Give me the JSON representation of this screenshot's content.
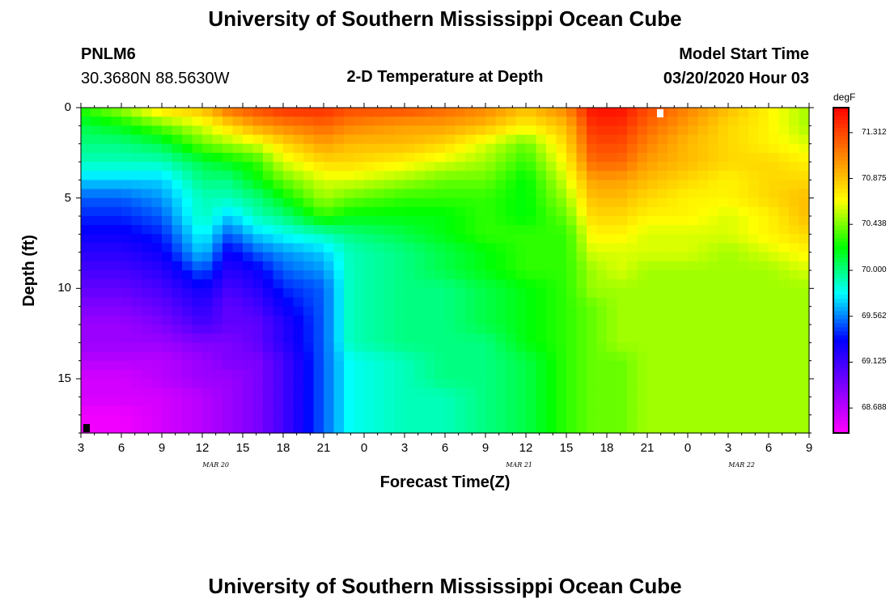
{
  "page": {
    "title_top": "University of Southern Mississippi Ocean Cube",
    "title_bottom": "University of Southern Mississippi Ocean Cube",
    "station_id": "PNLM6",
    "coordinates": "30.3680N 88.5630W",
    "plot_title": "2-D Temperature at Depth",
    "model_start_label": "Model Start Time",
    "model_start_value": "03/20/2020 Hour 03"
  },
  "chart_data": {
    "type": "heatmap",
    "title": "2-D Temperature at Depth",
    "xlabel": "Forecast Time(Z)",
    "ylabel": "Depth (ft)",
    "x_unit": "forecast hours from 03/20/2020 03Z",
    "xlim": [
      0,
      54
    ],
    "ylim": [
      0,
      18
    ],
    "x_ticks": [
      0,
      3,
      6,
      9,
      12,
      15,
      18,
      21,
      24,
      27,
      30,
      33,
      36,
      39,
      42,
      45,
      48,
      51,
      54
    ],
    "x_tick_labels": [
      "3",
      "6",
      "9",
      "12",
      "15",
      "18",
      "21",
      "0",
      "3",
      "6",
      "9",
      "12",
      "15",
      "18",
      "21",
      "0",
      "3",
      "6",
      "9"
    ],
    "y_ticks": [
      0,
      5,
      10,
      15
    ],
    "y_tick_labels": [
      "0",
      "5",
      "10",
      "15"
    ],
    "month_labels": [
      {
        "text": "MAR 20",
        "x": 10
      },
      {
        "text": "MAR 21",
        "x": 32.5
      },
      {
        "text": "MAR 22",
        "x": 49
      }
    ],
    "colorbar": {
      "unit": "degF",
      "min": 68.45,
      "max": 71.55,
      "ticks": [
        71.312,
        70.875,
        70.438,
        70.0,
        69.562,
        69.125,
        68.688
      ],
      "tick_labels": [
        "71.312",
        "70.875",
        "70.438",
        "70.000",
        "69.562",
        "69.125",
        "68.688"
      ]
    },
    "grid": {
      "x_hours": [
        0,
        3,
        6,
        9,
        11,
        13,
        15,
        18,
        20,
        24,
        27,
        30,
        33,
        36,
        38,
        40,
        42,
        45,
        48,
        51,
        54
      ],
      "depths_ft": [
        0,
        1,
        2,
        3,
        4,
        5,
        6,
        7,
        8,
        9,
        10,
        11,
        12,
        13,
        14,
        15,
        16,
        17,
        18
      ],
      "values_degF": [
        [
          70.3,
          70.5,
          70.8,
          70.9,
          71.2,
          71.3,
          71.4,
          71.4,
          71.3,
          71.3,
          71.2,
          71.1,
          70.9,
          71.1,
          71.5,
          71.5,
          71.3,
          71.1,
          70.9,
          70.7,
          70.5
        ],
        [
          70.1,
          70.2,
          70.4,
          70.6,
          70.8,
          71.0,
          71.1,
          71.2,
          71.1,
          71.0,
          71.0,
          70.9,
          70.7,
          70.9,
          71.4,
          71.4,
          71.2,
          71.0,
          70.8,
          70.7,
          70.5
        ],
        [
          70.0,
          70.0,
          70.1,
          70.4,
          70.5,
          70.6,
          70.8,
          71.0,
          70.9,
          70.9,
          70.8,
          70.6,
          70.4,
          70.8,
          71.3,
          71.3,
          71.1,
          70.9,
          70.8,
          70.7,
          70.6
        ],
        [
          69.9,
          69.9,
          69.9,
          70.1,
          70.2,
          70.3,
          70.6,
          70.8,
          70.8,
          70.7,
          70.6,
          70.5,
          70.3,
          70.7,
          71.2,
          71.2,
          71.0,
          70.9,
          70.8,
          70.8,
          70.7
        ],
        [
          69.7,
          69.7,
          69.7,
          70.0,
          70.0,
          70.2,
          70.4,
          70.6,
          70.6,
          70.5,
          70.4,
          70.4,
          70.2,
          70.6,
          71.0,
          71.0,
          70.9,
          70.8,
          70.7,
          70.8,
          70.8
        ],
        [
          69.5,
          69.5,
          69.6,
          69.9,
          69.9,
          70.0,
          70.2,
          70.5,
          70.4,
          70.3,
          70.3,
          70.3,
          70.2,
          70.5,
          70.9,
          70.9,
          70.8,
          70.7,
          70.7,
          70.8,
          70.9
        ],
        [
          69.4,
          69.4,
          69.5,
          69.9,
          69.7,
          69.9,
          70.0,
          70.3,
          70.2,
          70.2,
          70.2,
          70.3,
          70.2,
          70.4,
          70.8,
          70.8,
          70.7,
          70.7,
          70.6,
          70.7,
          70.9
        ],
        [
          69.3,
          69.3,
          69.4,
          69.8,
          69.5,
          69.7,
          69.8,
          69.9,
          70.0,
          70.1,
          70.2,
          70.3,
          70.3,
          70.3,
          70.7,
          70.7,
          70.6,
          70.6,
          70.6,
          70.7,
          70.8
        ],
        [
          69.2,
          69.2,
          69.3,
          69.7,
          69.3,
          69.5,
          69.6,
          69.7,
          69.9,
          70.0,
          70.1,
          70.2,
          70.3,
          70.3,
          70.6,
          70.6,
          70.6,
          70.6,
          70.5,
          70.6,
          70.7
        ],
        [
          69.1,
          69.1,
          69.2,
          69.5,
          69.2,
          69.3,
          69.5,
          69.6,
          69.9,
          70.0,
          70.1,
          70.2,
          70.3,
          70.3,
          70.5,
          70.6,
          70.5,
          70.5,
          70.5,
          70.5,
          70.6
        ],
        [
          69.0,
          69.0,
          69.1,
          69.3,
          69.1,
          69.2,
          69.4,
          69.5,
          69.9,
          70.0,
          70.0,
          70.1,
          70.2,
          70.3,
          70.5,
          70.5,
          70.5,
          70.5,
          70.5,
          70.5,
          70.5
        ],
        [
          68.9,
          68.9,
          69.0,
          69.2,
          69.0,
          69.1,
          69.3,
          69.5,
          69.9,
          70.0,
          70.0,
          70.1,
          70.2,
          70.3,
          70.4,
          70.5,
          70.5,
          70.5,
          70.5,
          70.5,
          70.5
        ],
        [
          68.8,
          68.8,
          68.9,
          69.1,
          69.0,
          69.0,
          69.2,
          69.5,
          69.9,
          70.0,
          70.0,
          70.1,
          70.2,
          70.3,
          70.4,
          70.5,
          70.5,
          70.5,
          70.5,
          70.5,
          70.5
        ],
        [
          68.8,
          68.8,
          68.8,
          68.9,
          68.9,
          69.0,
          69.2,
          69.5,
          69.9,
          70.0,
          70.0,
          70.0,
          70.2,
          70.3,
          70.4,
          70.5,
          70.5,
          70.5,
          70.5,
          70.5,
          70.5
        ],
        [
          68.7,
          68.7,
          68.7,
          68.8,
          68.9,
          68.9,
          69.1,
          69.5,
          69.8,
          69.9,
          70.0,
          70.0,
          70.1,
          70.3,
          70.4,
          70.4,
          70.5,
          70.5,
          70.5,
          70.5,
          70.5
        ],
        [
          68.6,
          68.6,
          68.7,
          68.8,
          68.8,
          68.9,
          69.1,
          69.5,
          69.8,
          69.9,
          70.0,
          70.0,
          70.1,
          70.3,
          70.4,
          70.4,
          70.5,
          70.5,
          70.5,
          70.5,
          70.5
        ],
        [
          68.6,
          68.6,
          68.6,
          68.7,
          68.8,
          68.9,
          69.1,
          69.5,
          69.8,
          69.9,
          69.9,
          70.0,
          70.1,
          70.3,
          70.4,
          70.4,
          70.5,
          70.5,
          70.5,
          70.5,
          70.5
        ],
        [
          68.5,
          68.5,
          68.6,
          68.7,
          68.8,
          68.9,
          69.1,
          69.5,
          69.8,
          69.9,
          69.9,
          70.0,
          70.1,
          70.3,
          70.4,
          70.4,
          70.5,
          70.5,
          70.5,
          70.5,
          70.5
        ],
        [
          68.5,
          68.5,
          68.6,
          68.7,
          68.8,
          68.9,
          69.1,
          69.5,
          69.8,
          69.9,
          69.9,
          70.0,
          70.1,
          70.3,
          70.4,
          70.4,
          70.5,
          70.5,
          70.5,
          70.5,
          70.5
        ]
      ]
    }
  },
  "colors": {
    "background": "#ffffff",
    "axis": "#000000",
    "colormap": [
      "#ff00ff",
      "#8000ff",
      "#0000ff",
      "#00ffff",
      "#00ff00",
      "#ffff00",
      "#ff8000",
      "#ff0000"
    ]
  }
}
